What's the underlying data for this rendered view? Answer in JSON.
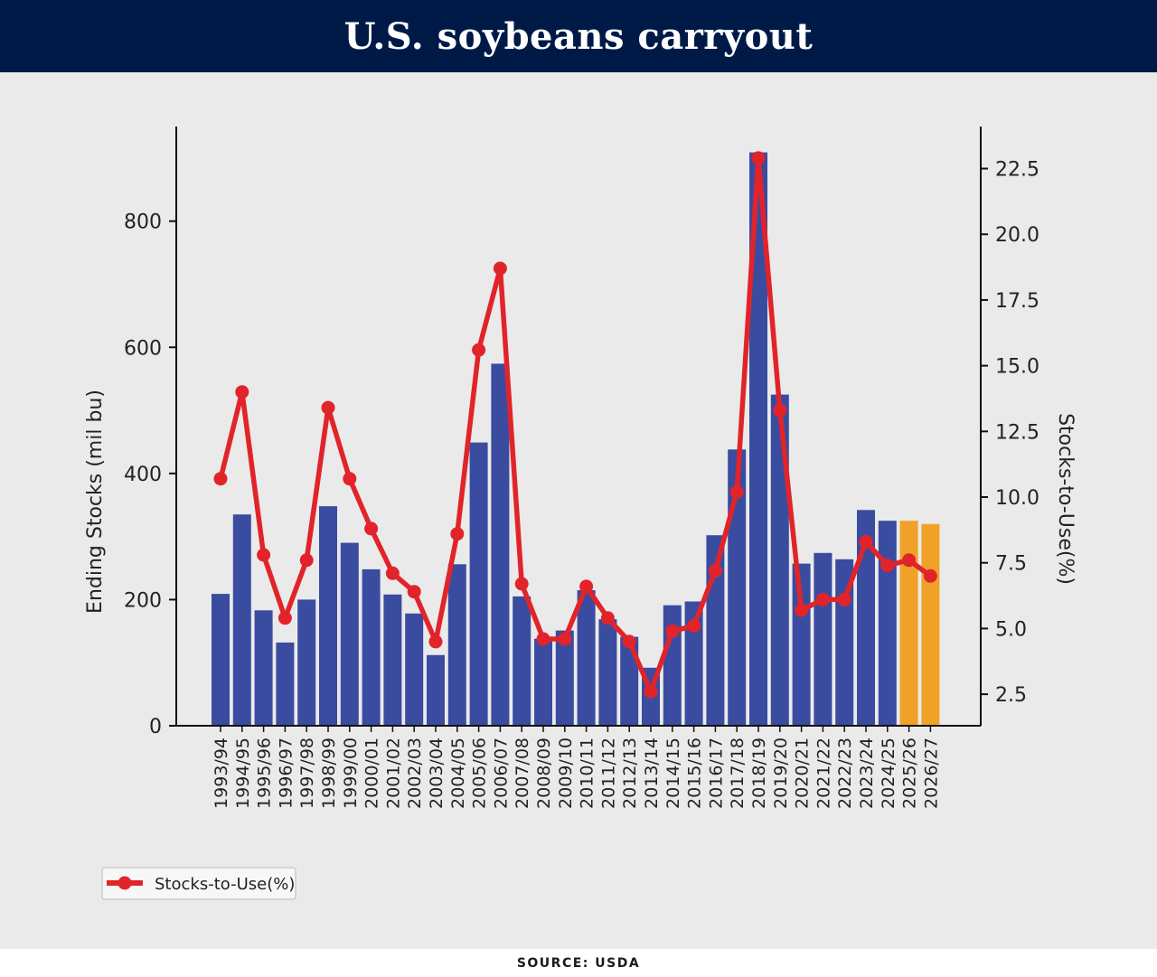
{
  "header": {
    "title": "U.S. soybeans carryout"
  },
  "footer": {
    "source": "SOURCE: USDA"
  },
  "colors": {
    "banner": "#001a47",
    "panel": "#eaeaea",
    "bar": "#3a4c9f",
    "bar_projected": "#f0a228",
    "line": "#e1242a"
  },
  "chart_data": {
    "type": "bar+line",
    "title": "",
    "ylabel": "Ending Stocks (mil bu)",
    "y2label": "Stocks-to-Use(%)",
    "ylim": [
      0,
      950
    ],
    "y2lim": [
      1.3,
      24.1
    ],
    "yticks": [
      0,
      200,
      400,
      600,
      800
    ],
    "y2ticks": [
      "2.5",
      "5.0",
      "7.5",
      "10.0",
      "12.5",
      "15.0",
      "17.5",
      "20.0",
      "22.5"
    ],
    "legend_position": "bottom-left",
    "categories": [
      "1993/94",
      "1994/95",
      "1995/96",
      "1996/97",
      "1997/98",
      "1998/99",
      "1999/00",
      "2000/01",
      "2001/02",
      "2002/03",
      "2003/04",
      "2004/05",
      "2005/06",
      "2006/07",
      "2007/08",
      "2008/09",
      "2009/10",
      "2010/11",
      "2011/12",
      "2012/13",
      "2013/14",
      "2014/15",
      "2015/16",
      "2016/17",
      "2017/18",
      "2018/19",
      "2019/20",
      "2020/21",
      "2021/22",
      "2022/23",
      "2023/24",
      "2024/25",
      "2025/26",
      "2026/27"
    ],
    "series": [
      {
        "name": "Ending Stocks (mil bu)",
        "type": "bar",
        "axis": "left",
        "values": [
          209,
          335,
          183,
          132,
          200,
          348,
          290,
          248,
          208,
          178,
          112,
          256,
          449,
          574,
          205,
          138,
          151,
          215,
          169,
          141,
          92,
          191,
          197,
          302,
          438,
          909,
          525,
          257,
          274,
          264,
          342,
          325,
          325,
          320
        ],
        "projected_from_index": 32
      },
      {
        "name": "Stocks-to-Use(%)",
        "type": "line",
        "axis": "right",
        "values": [
          10.7,
          14.0,
          7.8,
          5.4,
          7.6,
          13.4,
          10.7,
          8.8,
          7.1,
          6.4,
          4.5,
          8.6,
          15.6,
          18.7,
          6.7,
          4.6,
          4.6,
          6.6,
          5.4,
          4.5,
          2.6,
          4.9,
          5.1,
          7.2,
          10.2,
          22.9,
          13.3,
          5.7,
          6.1,
          6.1,
          8.3,
          7.4,
          7.6,
          7.0
        ]
      }
    ]
  }
}
